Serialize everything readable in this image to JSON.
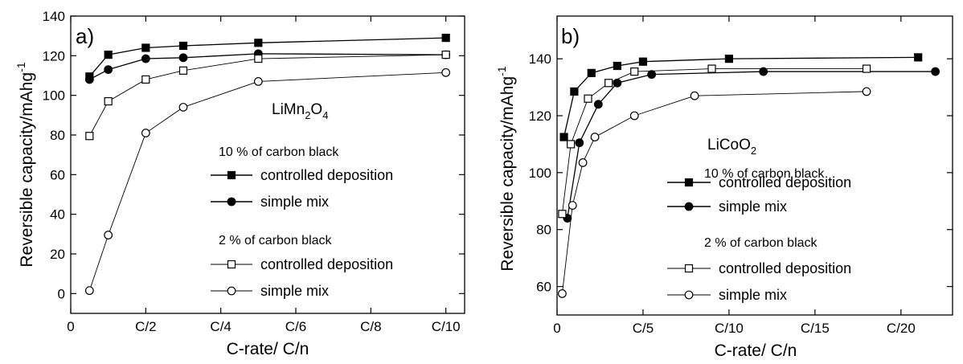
{
  "chart_data": [
    {
      "type": "line",
      "panel_label": "a)",
      "compound_prefix": "LiMn",
      "compound_sub1": "2",
      "compound_mid": "O",
      "compound_sub2": "4",
      "xlabel": "C-rate/ C/n",
      "ylabel": "Reversible capacity/mAhg",
      "ylabel_sup": "-1",
      "xlim": [
        0,
        10.5
      ],
      "ylim": [
        -10,
        140
      ],
      "xticks": [
        {
          "v": 0,
          "label": "0"
        },
        {
          "v": 2,
          "label": "C/2"
        },
        {
          "v": 4,
          "label": "C/4"
        },
        {
          "v": 6,
          "label": "C/6"
        },
        {
          "v": 8,
          "label": "C/8"
        },
        {
          "v": 10,
          "label": "C/10"
        }
      ],
      "yticks": [
        0,
        20,
        40,
        60,
        80,
        100,
        120,
        140
      ],
      "legend_groups": [
        "10 % of carbon black",
        "2 % of carbon black"
      ],
      "series": [
        {
          "name": "controlled deposition",
          "group": 0,
          "marker": "square",
          "filled": true,
          "x": [
            0.5,
            1,
            2,
            3,
            5,
            10
          ],
          "y": [
            109.5,
            120.5,
            124,
            125,
            126.5,
            129
          ]
        },
        {
          "name": "simple mix",
          "group": 0,
          "marker": "circle",
          "filled": true,
          "x": [
            0.5,
            1,
            2,
            3,
            5,
            10
          ],
          "y": [
            108,
            113,
            118.5,
            119,
            121,
            120.5
          ]
        },
        {
          "name": "controlled deposition",
          "group": 1,
          "marker": "square",
          "filled": false,
          "x": [
            0.5,
            1,
            2,
            3,
            5,
            10
          ],
          "y": [
            79.5,
            97,
            108,
            112.5,
            118.5,
            120.5
          ]
        },
        {
          "name": "simple mix",
          "group": 1,
          "marker": "circle",
          "filled": false,
          "x": [
            0.5,
            1,
            2,
            3,
            5,
            10
          ],
          "y": [
            1.5,
            29.5,
            81,
            94,
            107,
            111.5
          ]
        }
      ]
    },
    {
      "type": "line",
      "panel_label": "b)",
      "compound_prefix": "LiCoO",
      "compound_sub1": "2",
      "xlabel": "C-rate/ C/n",
      "ylabel": "Reversible capacity/mAhg",
      "ylabel_sup": "-1",
      "xlim": [
        0,
        23
      ],
      "ylim": [
        50,
        155
      ],
      "xticks": [
        {
          "v": 0,
          "label": "0"
        },
        {
          "v": 5,
          "label": "C/5"
        },
        {
          "v": 10,
          "label": "C/10"
        },
        {
          "v": 15,
          "label": "C/15"
        },
        {
          "v": 20,
          "label": "C/20"
        }
      ],
      "yticks": [
        60,
        80,
        100,
        120,
        140
      ],
      "legend_groups": [
        "10 % of carbon black",
        "2 % of carbon black"
      ],
      "series": [
        {
          "name": "controlled deposition",
          "group": 0,
          "marker": "square",
          "filled": true,
          "x": [
            0.4,
            1,
            2,
            3.5,
            5,
            10,
            21
          ],
          "y": [
            112.5,
            128.5,
            135,
            137.5,
            139,
            140,
            140.5
          ]
        },
        {
          "name": "simple mix",
          "group": 0,
          "marker": "circle",
          "filled": true,
          "x": [
            0.6,
            1.3,
            2.4,
            3.5,
            5.5,
            12,
            22
          ],
          "y": [
            84,
            110.5,
            124,
            131.5,
            134.5,
            135.5,
            135.5
          ]
        },
        {
          "name": "controlled deposition",
          "group": 1,
          "marker": "square",
          "filled": false,
          "x": [
            0.3,
            0.8,
            1.8,
            3,
            4.5,
            9,
            18
          ],
          "y": [
            85.5,
            110,
            126,
            131.5,
            135.5,
            136.5,
            136.5
          ]
        },
        {
          "name": "simple mix",
          "group": 1,
          "marker": "circle",
          "filled": false,
          "x": [
            0.3,
            0.9,
            1.5,
            2.2,
            4.5,
            8,
            18
          ],
          "y": [
            57.5,
            88.5,
            103.5,
            112.5,
            120,
            127,
            128.5
          ]
        }
      ]
    }
  ]
}
